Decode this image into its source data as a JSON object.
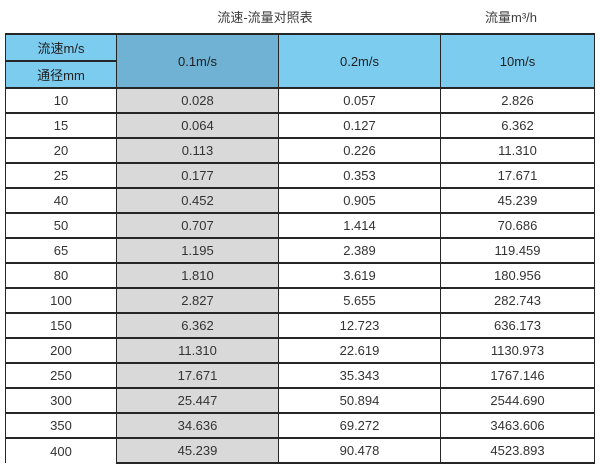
{
  "caption": {
    "title": "流速-流量对照表",
    "unit": "流量m³/h"
  },
  "colors": {
    "header_blue": "#7cccef",
    "header_blue_selected": "#6fb2d3",
    "column_gray": "#d9d9d9",
    "border": "#262626",
    "text": "#333333"
  },
  "chart_data": {
    "type": "table",
    "title": "流速-流量对照表",
    "unit_label": "流量m³/h",
    "corner": {
      "top": "流速m/s",
      "bottom": "通径mm"
    },
    "velocity_columns": [
      "0.1m/s",
      "0.2m/s",
      "10m/s"
    ],
    "highlighted_column": "0.1m/s",
    "rows": [
      {
        "diameter": "10",
        "values": [
          "0.028",
          "0.057",
          "2.826"
        ]
      },
      {
        "diameter": "15",
        "values": [
          "0.064",
          "0.127",
          "6.362"
        ]
      },
      {
        "diameter": "20",
        "values": [
          "0.113",
          "0.226",
          "11.310"
        ]
      },
      {
        "diameter": "25",
        "values": [
          "0.177",
          "0.353",
          "17.671"
        ]
      },
      {
        "diameter": "40",
        "values": [
          "0.452",
          "0.905",
          "45.239"
        ]
      },
      {
        "diameter": "50",
        "values": [
          "0.707",
          "1.414",
          "70.686"
        ]
      },
      {
        "diameter": "65",
        "values": [
          "1.195",
          "2.389",
          "119.459"
        ]
      },
      {
        "diameter": "80",
        "values": [
          "1.810",
          "3.619",
          "180.956"
        ]
      },
      {
        "diameter": "100",
        "values": [
          "2.827",
          "5.655",
          "282.743"
        ]
      },
      {
        "diameter": "150",
        "values": [
          "6.362",
          "12.723",
          "636.173"
        ]
      },
      {
        "diameter": "200",
        "values": [
          "11.310",
          "22.619",
          "1130.973"
        ]
      },
      {
        "diameter": "250",
        "values": [
          "17.671",
          "35.343",
          "1767.146"
        ]
      },
      {
        "diameter": "300",
        "values": [
          "25.447",
          "50.894",
          "2544.690"
        ]
      },
      {
        "diameter": "350",
        "values": [
          "34.636",
          "69.272",
          "3463.606"
        ]
      },
      {
        "diameter": "400",
        "values": [
          "45.239",
          "90.478",
          "4523.893"
        ]
      }
    ]
  }
}
